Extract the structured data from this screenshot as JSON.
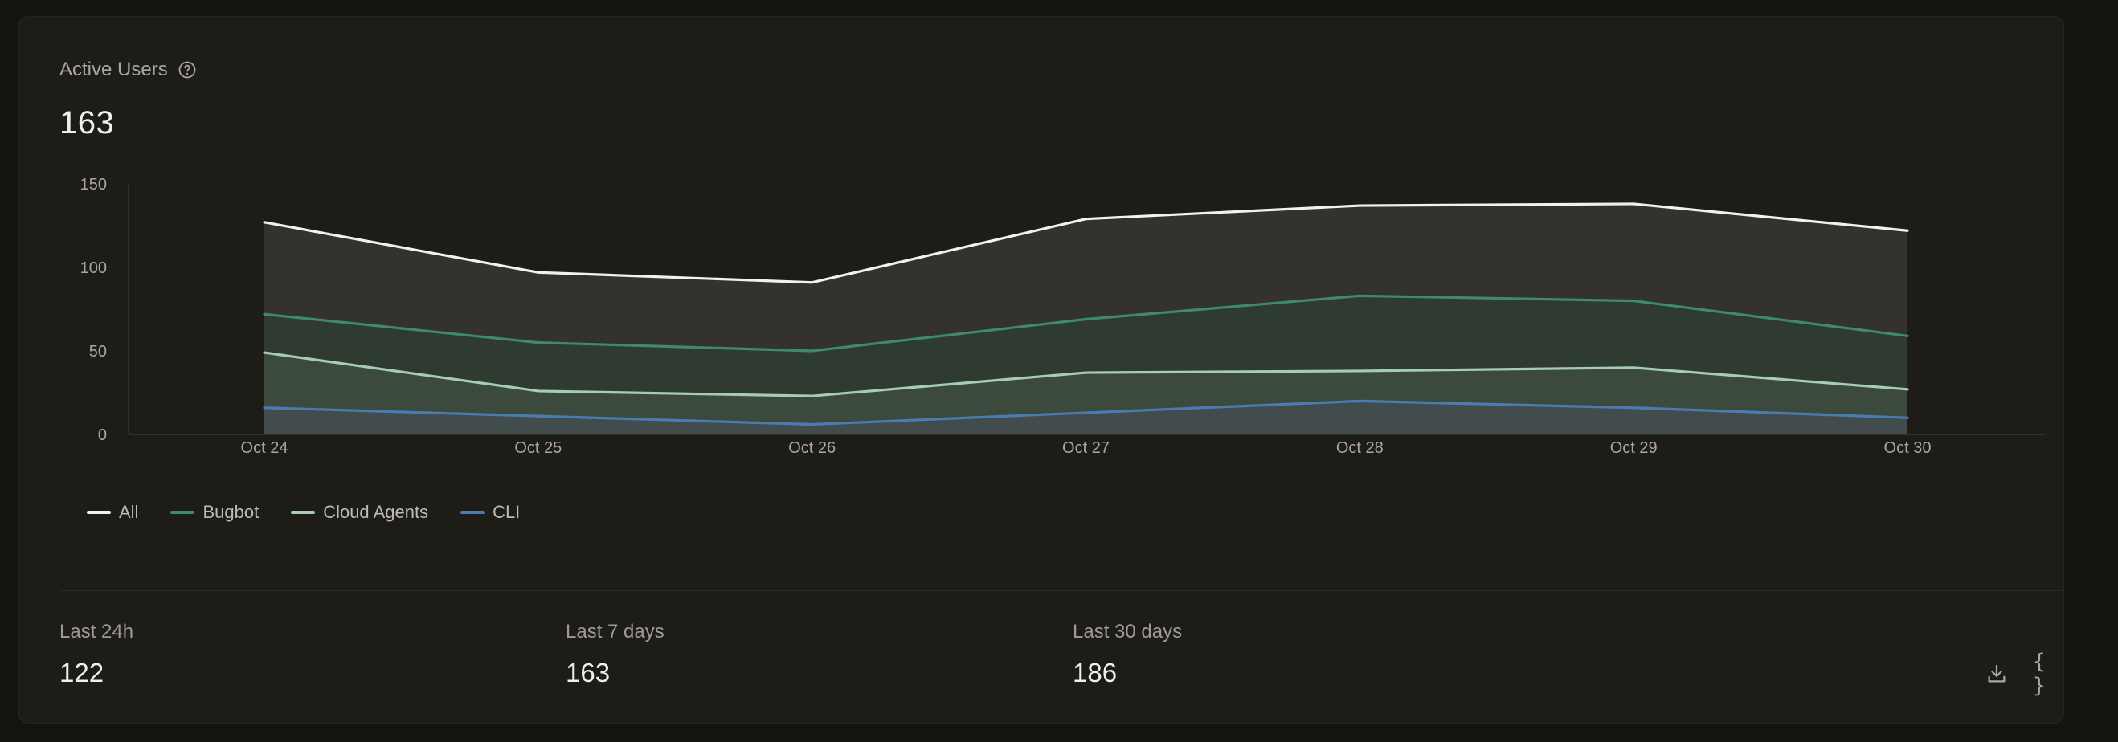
{
  "header": {
    "title": "Active Users",
    "value": "163"
  },
  "chart_data": {
    "type": "area",
    "categories": [
      "Oct 24",
      "Oct 25",
      "Oct 26",
      "Oct 27",
      "Oct 28",
      "Oct 29",
      "Oct 30"
    ],
    "ylim": [
      0,
      150
    ],
    "yticks": [
      0,
      50,
      100,
      150
    ],
    "grid": false,
    "legend_position": "bottom-left",
    "series": [
      {
        "name": "All",
        "color": "#f3f1ec",
        "fill": "#34322d",
        "values": [
          127,
          97,
          91,
          129,
          137,
          138,
          122
        ]
      },
      {
        "name": "Bugbot",
        "color": "#3f8a68",
        "fill": "#2f3a30",
        "values": [
          72,
          55,
          50,
          69,
          83,
          80,
          59
        ]
      },
      {
        "name": "Cloud Agents",
        "color": "#a5cdb2",
        "fill": "#3c4a3e",
        "values": [
          49,
          26,
          23,
          37,
          38,
          40,
          27
        ]
      },
      {
        "name": "CLI",
        "color": "#4b7bb0",
        "fill": "#434c4d",
        "values": [
          16,
          11,
          6,
          13,
          20,
          16,
          10
        ]
      }
    ]
  },
  "stats": [
    {
      "label": "Last 24h",
      "value": "122"
    },
    {
      "label": "Last 7 days",
      "value": "163"
    },
    {
      "label": "Last 30 days",
      "value": "186"
    }
  ],
  "actions": {
    "download_icon": "download-icon",
    "json_icon": "json-braces-icon",
    "json_glyph": "{ }"
  }
}
